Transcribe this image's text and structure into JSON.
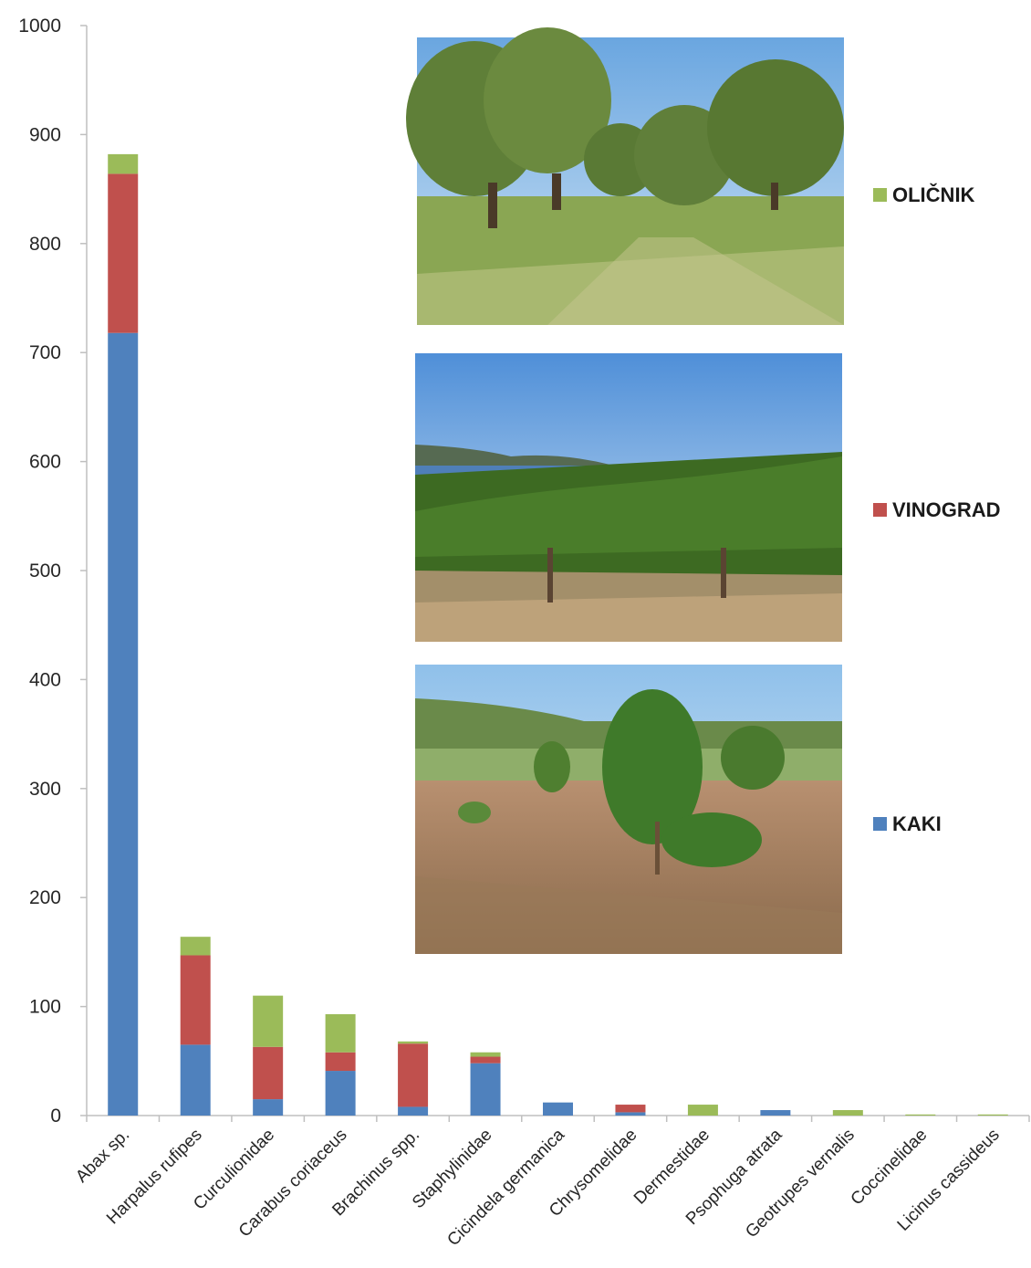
{
  "chart_data": {
    "type": "bar",
    "stacked": true,
    "categories": [
      "Abax sp.",
      "Harpalus rufipes",
      "Curculionidae",
      "Carabus coriaceus",
      "Brachinus spp.",
      "Staphylinidae",
      "Cicindela germanica",
      "Chrysomelidae",
      "Dermestidae",
      "Psophuga atrata",
      "Geotrupes vernalis",
      "Coccinelidae",
      "Licinus cassideus"
    ],
    "series": [
      {
        "name": "KAKI",
        "color": "#4f81bd",
        "values": [
          718,
          65,
          15,
          41,
          8,
          48,
          12,
          3,
          0,
          5,
          0,
          0,
          0
        ]
      },
      {
        "name": "VINOGRAD",
        "color": "#c0504d",
        "values": [
          146,
          82,
          48,
          17,
          58,
          6,
          0,
          7,
          0,
          0,
          0,
          0,
          0
        ]
      },
      {
        "name": "OLIČNIK",
        "color": "#9bbb59",
        "values": [
          18,
          17,
          47,
          35,
          2,
          4,
          0,
          0,
          10,
          0,
          5,
          1,
          1
        ]
      }
    ],
    "yticks": [
      0,
      100,
      200,
      300,
      400,
      500,
      600,
      700,
      800,
      900,
      1000
    ],
    "ylim": [
      0,
      1000
    ],
    "grid": false,
    "legend_position": "right",
    "legend_order": [
      "OLIČNIK",
      "VINOGRAD",
      "KAKI"
    ],
    "legend_labels": {
      "OLIČNIK": "OLIČNIK",
      "VINOGRAD": "VINOGRAD",
      "KAKI": "KAKI"
    }
  },
  "photos": [
    {
      "name": "olive-grove-photo",
      "series": "OLIČNIK"
    },
    {
      "name": "vineyard-photo",
      "series": "VINOGRAD"
    },
    {
      "name": "persimmon-orchard-photo",
      "series": "KAKI"
    }
  ]
}
